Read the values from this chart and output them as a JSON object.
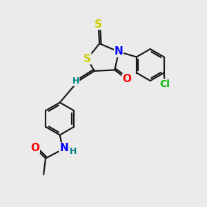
{
  "bg_color": "#ebebeb",
  "bond_color": "#1a1a1a",
  "atom_colors": {
    "S": "#cccc00",
    "N": "#0000ff",
    "O": "#ff0000",
    "Cl": "#00bb00",
    "H": "#008080",
    "C": "#1a1a1a"
  },
  "bond_lw": 1.6,
  "font_size": 10
}
